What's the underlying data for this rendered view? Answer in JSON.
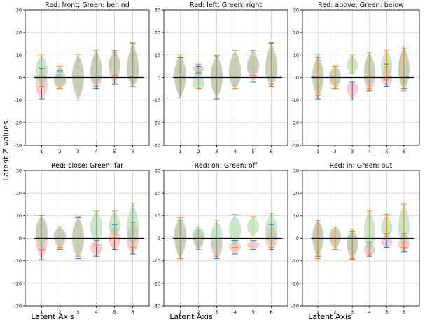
{
  "figure": {
    "ylabel": "Latent Z values",
    "xlabel": "Latent Axis"
  },
  "colors": {
    "red_fill": "#f4a0a8",
    "green_fill": "#9ed2a0",
    "overlap_fill": "#a6a07a",
    "whisker_blue": "#1f77b4",
    "whisker_orange": "#ff7f0e",
    "zero_line": "#000000",
    "grid": "#d0d0d0"
  },
  "chart_data": [
    {
      "type": "violin",
      "title": "Red: front; Green: behind",
      "x": [
        1,
        2,
        3,
        4,
        5,
        6
      ],
      "ylim": [
        -30,
        30
      ],
      "yticks": [
        -30,
        -20,
        -10,
        0,
        10,
        20,
        30
      ],
      "grid": true,
      "series": [
        {
          "name": "Red",
          "median": [
            -3,
            -2,
            0,
            1,
            5,
            2
          ],
          "min": [
            -9.5,
            -5,
            -10,
            -5,
            -3,
            -4
          ],
          "max": [
            4,
            3,
            10,
            12,
            12,
            15
          ]
        },
        {
          "name": "Green",
          "median": [
            3,
            -1,
            1,
            3,
            6,
            3
          ],
          "min": [
            -4,
            -5,
            -9,
            -4,
            1,
            -4
          ],
          "max": [
            10,
            5,
            10,
            12,
            11,
            15.5
          ]
        }
      ]
    },
    {
      "type": "violin",
      "title": "Red: left; Green: right",
      "x": [
        1,
        2,
        3,
        4,
        5,
        6
      ],
      "ylim": [
        -30,
        30
      ],
      "yticks": [
        -30,
        -20,
        -10,
        0,
        10,
        20,
        30
      ],
      "grid": true,
      "series": [
        {
          "name": "Red",
          "median": [
            1,
            4,
            0,
            1,
            5,
            2
          ],
          "min": [
            -9,
            2,
            -9.5,
            -5,
            -2,
            -4
          ],
          "max": [
            9,
            5,
            9.5,
            12,
            12,
            15
          ]
        },
        {
          "name": "Green",
          "median": [
            2,
            -4,
            1,
            3,
            5,
            4
          ],
          "min": [
            -9,
            -5,
            -9,
            -5,
            1,
            -3
          ],
          "max": [
            10,
            6,
            10,
            12,
            11,
            15.5
          ]
        }
      ]
    },
    {
      "type": "violin",
      "title": "Red: above; Green: below",
      "x": [
        1,
        2,
        3,
        4,
        5,
        6
      ],
      "ylim": [
        -30,
        30
      ],
      "yticks": [
        -30,
        -20,
        -10,
        0,
        10,
        20,
        30
      ],
      "grid": true,
      "series": [
        {
          "name": "Red",
          "median": [
            0,
            0,
            -4,
            0,
            -1,
            4
          ],
          "min": [
            -9.5,
            -5,
            -10,
            -6,
            -4,
            -5
          ],
          "max": [
            10,
            5,
            -2,
            11,
            6,
            13
          ]
        },
        {
          "name": "Green",
          "median": [
            1,
            1,
            5,
            3,
            5,
            3
          ],
          "min": [
            -8,
            -5,
            2,
            -5,
            -1,
            -6
          ],
          "max": [
            9,
            5,
            10,
            11,
            12,
            14
          ]
        }
      ]
    },
    {
      "type": "violin",
      "title": "Red: close; Green: far",
      "x": [
        1,
        2,
        3,
        4,
        5,
        6
      ],
      "ylim": [
        -30,
        30
      ],
      "yticks": [
        -30,
        -20,
        -10,
        0,
        10,
        20,
        30
      ],
      "grid": true,
      "series": [
        {
          "name": "Red",
          "median": [
            0,
            0,
            -1,
            -4,
            -1,
            -1
          ],
          "min": [
            -9.5,
            -5,
            -9,
            -8,
            -5,
            -7
          ],
          "max": [
            10,
            5,
            9,
            -1,
            6,
            7
          ]
        },
        {
          "name": "Green",
          "median": [
            4,
            2,
            1,
            5,
            5,
            4
          ],
          "min": [
            -5,
            -4,
            -8,
            -3,
            1,
            -4
          ],
          "max": [
            10,
            5,
            9.5,
            12,
            12,
            15.5
          ]
        }
      ]
    },
    {
      "type": "violin",
      "title": "Red: on; Green: off",
      "x": [
        1,
        2,
        3,
        4,
        5,
        6
      ],
      "ylim": [
        -30,
        30
      ],
      "yticks": [
        -30,
        -20,
        -10,
        0,
        10,
        20,
        30
      ],
      "grid": true,
      "series": [
        {
          "name": "Red",
          "median": [
            0,
            0,
            -3,
            -4,
            -3,
            -1
          ],
          "min": [
            -9,
            -5,
            -9,
            -7,
            -5,
            -5
          ],
          "max": [
            8,
            4,
            0,
            -1,
            -1,
            6
          ]
        },
        {
          "name": "Green",
          "median": [
            3,
            2,
            0,
            4,
            5,
            4
          ],
          "min": [
            -9,
            -5,
            -8,
            -4,
            1,
            -4
          ],
          "max": [
            9,
            5,
            8,
            10.5,
            9.5,
            11
          ]
        }
      ]
    },
    {
      "type": "violin",
      "title": "Red: in; Green: out",
      "x": [
        1,
        2,
        3,
        4,
        5,
        6
      ],
      "ylim": [
        -30,
        30
      ],
      "yticks": [
        -30,
        -20,
        -10,
        0,
        10,
        20,
        30
      ],
      "grid": true,
      "series": [
        {
          "name": "Red",
          "median": [
            0,
            0,
            -3,
            -5,
            -2,
            -3
          ],
          "min": [
            -8,
            -5,
            -9.5,
            -8,
            -4,
            -6
          ],
          "max": [
            8,
            5,
            3,
            -2,
            2,
            2
          ]
        },
        {
          "name": "Green",
          "median": [
            1,
            2,
            -1,
            3,
            4,
            5
          ],
          "min": [
            -9,
            -5,
            -9,
            -7,
            0,
            -4
          ],
          "max": [
            8,
            5,
            4,
            12,
            10.5,
            15
          ]
        }
      ]
    }
  ]
}
